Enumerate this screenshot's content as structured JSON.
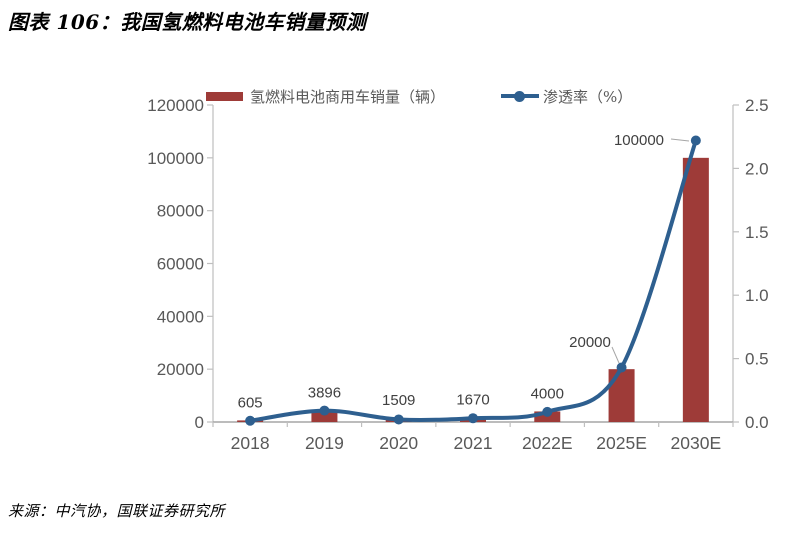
{
  "header": {
    "title": "图表 106：我国氢燃料电池车销量预测"
  },
  "footer": {
    "source": "来源：中汽协，国联证券研究所"
  },
  "chart_data": {
    "type": "bar",
    "subtype": "bar-line-combo",
    "title": "我国氢燃料电池车销量预测",
    "categories": [
      "2018",
      "2019",
      "2020",
      "2021",
      "2022E",
      "2025E",
      "2030E"
    ],
    "series": [
      {
        "name": "氢燃料电池商用车销量（辆）",
        "type": "bar",
        "axis": "left",
        "color": "#9e3b38",
        "values": [
          605,
          3896,
          1509,
          1670,
          4000,
          20000,
          100000
        ],
        "data_labels": [
          "605",
          "3896",
          "1509",
          "1670",
          "4000",
          "20000",
          "100000"
        ]
      },
      {
        "name": "渗透率（%）",
        "type": "line",
        "axis": "right",
        "color": "#2e5f8f",
        "values_estimated": true,
        "values": [
          0.01,
          0.09,
          0.02,
          0.03,
          0.08,
          0.43,
          2.22
        ]
      }
    ],
    "left_axis": {
      "min": 0,
      "max": 120000,
      "tick_labels": [
        "0",
        "20000",
        "40000",
        "60000",
        "80000",
        "100000",
        "120000"
      ]
    },
    "right_axis": {
      "min": 0,
      "max": 2.5,
      "tick_labels": [
        "0.0",
        "0.5",
        "1.0",
        "1.5",
        "2.0",
        "2.5"
      ]
    },
    "legend_position": "top",
    "grid": false,
    "colors": {
      "axis_line": "#bfbfbf",
      "baseline": "#a6a6a6",
      "tick_text": "#595959",
      "data_label": "#404040",
      "leader_line": "#a6a6a6"
    }
  }
}
